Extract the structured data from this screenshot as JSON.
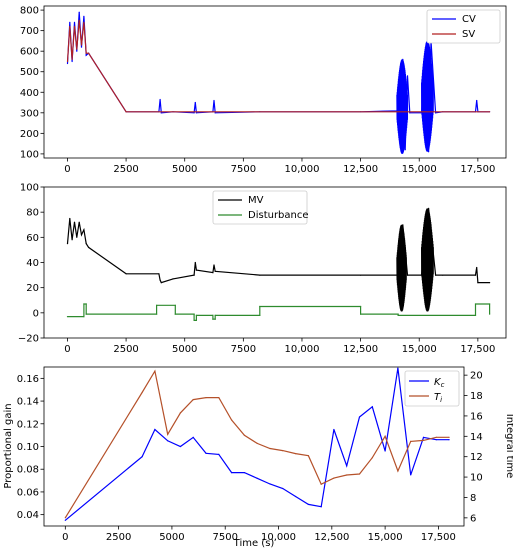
{
  "chart_data": [
    {
      "type": "line",
      "xlim": [
        -1000,
        18700
      ],
      "ylim": [
        80,
        820
      ],
      "xticks": [
        0,
        2500,
        5000,
        7500,
        10000,
        12500,
        15000,
        17500
      ],
      "xtick_labels": [
        "0",
        "2500",
        "5000",
        "7500",
        "10,000",
        "12,500",
        "15,000",
        "17,500"
      ],
      "yticks": [
        100,
        200,
        300,
        400,
        500,
        600,
        700,
        800
      ],
      "ytick_labels": [
        "100",
        "200",
        "300",
        "400",
        "500",
        "600",
        "700",
        "800"
      ],
      "legend_position": "top-right",
      "series": [
        {
          "name": "CV",
          "color": "#0000ff",
          "x": [
            0,
            100,
            200,
            300,
            400,
            500,
            600,
            700,
            800,
            900,
            2500,
            3900,
            3950,
            4000,
            4500,
            5400,
            5450,
            5500,
            6200,
            6250,
            6300,
            8200,
            12500,
            14100,
            14200,
            14300,
            14400,
            14500,
            14600,
            15100,
            15300,
            15400,
            15500,
            15700,
            16000,
            17400,
            17450,
            17500,
            18000
          ],
          "y": [
            540,
            740,
            550,
            740,
            600,
            790,
            620,
            770,
            580,
            590,
            305,
            305,
            365,
            300,
            305,
            300,
            350,
            300,
            305,
            360,
            300,
            305,
            305,
            310,
            420,
            560,
            120,
            480,
            300,
            300,
            640,
            110,
            650,
            300,
            305,
            305,
            360,
            305,
            305
          ],
          "bands": [
            {
              "x0": 14050,
              "x1": 14500,
              "ymin": 100,
              "ymax": 560
            },
            {
              "x0": 15100,
              "x1": 15600,
              "ymin": 110,
              "ymax": 650
            }
          ]
        },
        {
          "name": "SV",
          "color": "#b22222",
          "x": [
            0,
            100,
            200,
            300,
            400,
            500,
            600,
            700,
            800,
            900,
            2500,
            18000
          ],
          "y": [
            550,
            720,
            560,
            720,
            610,
            750,
            630,
            740,
            590,
            590,
            305,
            305
          ]
        }
      ]
    },
    {
      "type": "line",
      "xlim": [
        -1000,
        18700
      ],
      "ylim": [
        -20,
        100
      ],
      "xticks": [
        0,
        2500,
        5000,
        7500,
        10000,
        12500,
        15000,
        17500
      ],
      "xtick_labels": [
        "0",
        "2500",
        "5000",
        "7500",
        "10,000",
        "12,500",
        "15,000",
        "17,500"
      ],
      "yticks": [
        -20,
        0,
        20,
        40,
        60,
        80,
        100
      ],
      "ytick_labels": [
        "−20",
        "0",
        "20",
        "40",
        "60",
        "80",
        "100"
      ],
      "legend_position": "top-center",
      "series": [
        {
          "name": "MV",
          "color": "#000000",
          "x": [
            0,
            100,
            200,
            300,
            400,
            500,
            600,
            700,
            800,
            900,
            2500,
            3900,
            3950,
            4000,
            4500,
            5400,
            5450,
            5500,
            6200,
            6250,
            6300,
            8200,
            12500,
            14100,
            14300,
            14500,
            15100,
            15400,
            15700,
            16000,
            17400,
            17450,
            17500,
            18000
          ],
          "y": [
            55,
            75,
            58,
            72,
            60,
            72,
            62,
            66,
            55,
            52,
            31,
            31,
            26,
            24,
            27,
            30,
            40,
            34,
            32,
            38,
            33,
            30,
            30,
            30,
            70,
            30,
            30,
            83,
            30,
            30,
            30,
            36,
            24,
            24
          ],
          "bands": [
            {
              "x0": 14050,
              "x1": 14450,
              "ymin": 1,
              "ymax": 70
            },
            {
              "x0": 15100,
              "x1": 15600,
              "ymin": 1,
              "ymax": 83
            }
          ]
        },
        {
          "name": "Disturbance",
          "color": "#2e8b2e",
          "x": [
            0,
            700,
            700,
            800,
            800,
            3800,
            3800,
            4600,
            4600,
            5400,
            5400,
            5500,
            5500,
            6200,
            6200,
            6300,
            6300,
            8200,
            8200,
            12500,
            12500,
            14100,
            14100,
            17400,
            17400,
            18000,
            18000
          ],
          "y": [
            -3,
            -3,
            7,
            7,
            -1,
            -1,
            6,
            6,
            -1,
            -1,
            -6,
            -6,
            -2,
            -2,
            -5,
            -5,
            -2,
            -2,
            5,
            5,
            -1,
            -1,
            -2,
            -2,
            7,
            7,
            -1
          ]
        }
      ]
    },
    {
      "type": "line",
      "xlabel": "Time (s)",
      "ylabel": "Proportional gain",
      "ylabel_right": "Integral time",
      "xlim": [
        -1000,
        18700
      ],
      "ylim": [
        0.03,
        0.17
      ],
      "ylim_right": [
        5.2,
        20.8
      ],
      "xticks": [
        0,
        2500,
        5000,
        7500,
        10000,
        12500,
        15000,
        17500
      ],
      "xtick_labels": [
        "0",
        "2500",
        "5000",
        "7500",
        "10,000",
        "12,500",
        "15,000",
        "17,500"
      ],
      "yticks": [
        0.04,
        0.06,
        0.08,
        0.1,
        0.12,
        0.14,
        0.16
      ],
      "ytick_labels": [
        "0.04",
        "0.06",
        "0.08",
        "0.10",
        "0.12",
        "0.14",
        "0.16"
      ],
      "yticks_right": [
        6,
        8,
        10,
        12,
        14,
        16,
        18,
        20
      ],
      "ytick_labels_right": [
        "6",
        "8",
        "10",
        "12",
        "14",
        "16",
        "18",
        "20"
      ],
      "legend_position": "top-right",
      "series": [
        {
          "name": "K_c",
          "legend_main": "K",
          "legend_sub": "c",
          "color": "#0000ff",
          "axis": "left",
          "x": [
            0,
            3600,
            4200,
            4800,
            5400,
            6000,
            6600,
            7200,
            7800,
            8400,
            9000,
            9600,
            10200,
            10800,
            11400,
            12000,
            12600,
            13200,
            13800,
            14400,
            15000,
            15600,
            16200,
            16800,
            17400,
            18000
          ],
          "y": [
            0.035,
            0.091,
            0.115,
            0.105,
            0.1,
            0.108,
            0.094,
            0.093,
            0.077,
            0.077,
            0.072,
            0.067,
            0.063,
            0.056,
            0.049,
            0.047,
            0.115,
            0.083,
            0.126,
            0.135,
            0.096,
            0.169,
            0.075,
            0.108,
            0.106,
            0.106
          ]
        },
        {
          "name": "T_i",
          "legend_main": "T",
          "legend_sub": "i",
          "color": "#b5512a",
          "axis": "right",
          "x": [
            0,
            3600,
            4200,
            4800,
            5400,
            6000,
            6600,
            7200,
            7800,
            8400,
            9000,
            9600,
            10200,
            10800,
            11400,
            12000,
            12600,
            13200,
            13800,
            14400,
            15000,
            15600,
            16200,
            16800,
            17400,
            18000
          ],
          "y": [
            6,
            18.3,
            20.4,
            14.2,
            16.3,
            17.6,
            17.8,
            17.8,
            15.6,
            14.1,
            13.3,
            12.8,
            12.6,
            12.3,
            12.1,
            9.3,
            9.9,
            10.2,
            10.3,
            11.9,
            14.0,
            10.6,
            13.5,
            13.6,
            13.9,
            13.9
          ]
        }
      ]
    }
  ]
}
